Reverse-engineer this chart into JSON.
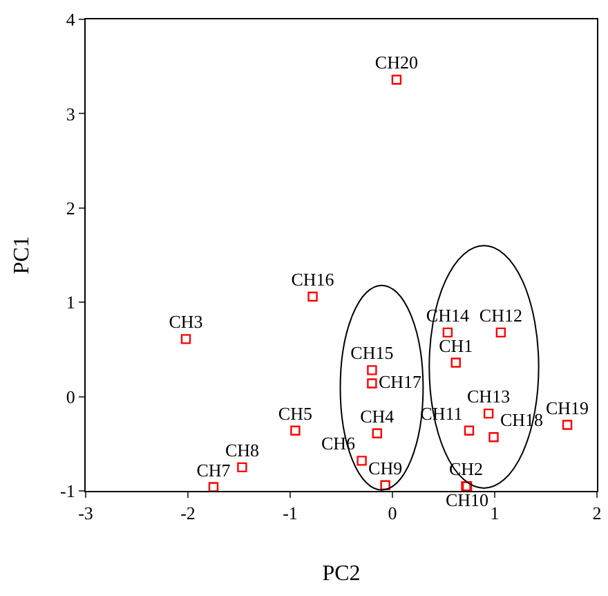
{
  "chart_data": {
    "type": "scatter",
    "xlabel": "PC2",
    "ylabel": "PC1",
    "x": [
      0.62,
      0.72,
      -2.02,
      -0.15,
      -0.95,
      -0.3,
      -1.75,
      -1.47,
      -0.07,
      0.73,
      0.75,
      1.06,
      0.94,
      0.54,
      -0.2,
      -0.78,
      -0.2,
      0.99,
      1.71,
      0.04
    ],
    "series": [
      {
        "color": "#ff0000",
        "values": [
          0.36,
          -0.95,
          0.61,
          -0.39,
          -0.36,
          -0.68,
          -0.96,
          -0.75,
          -0.94,
          -0.95,
          -0.36,
          0.68,
          -0.18,
          0.68,
          0.28,
          1.06,
          0.14,
          -0.43,
          -0.3,
          3.36
        ],
        "value_labels": [
          "CH1",
          "CH2",
          "CH3",
          "CH4",
          "CH5",
          "CH6",
          "CH7",
          "CH8",
          "CH9",
          "CH10",
          "CH11",
          "CH12",
          "CH13",
          "CH14",
          "CH15",
          "CH16",
          "CH17",
          "CH18",
          "CH19",
          "CH20"
        ]
      }
    ],
    "xlim": [
      -3,
      2
    ],
    "xticks": [
      -3,
      -2,
      -1,
      0,
      1,
      2
    ],
    "ylim": [
      -1,
      4
    ],
    "yticks": [
      -1,
      0,
      1,
      2,
      3,
      4
    ],
    "marker": "square",
    "grid": false
  }
}
